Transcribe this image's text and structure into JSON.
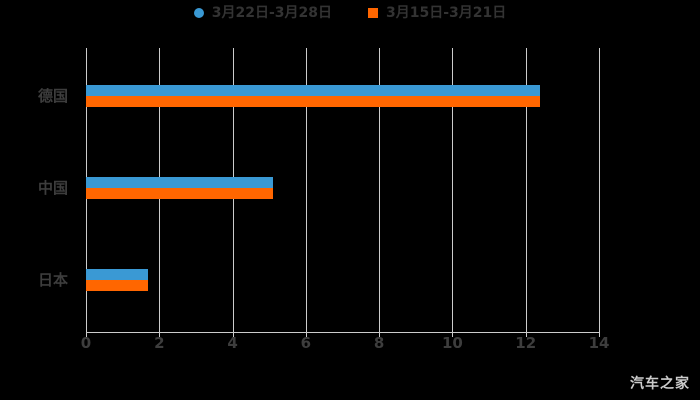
{
  "chart_data": {
    "type": "bar",
    "orientation": "horizontal",
    "title": "",
    "xlabel": "",
    "ylabel": "",
    "categories": [
      "德国",
      "中国",
      "日本"
    ],
    "series": [
      {
        "name": "3月22日-3月28日",
        "color": "#3a99d4",
        "marker": "circle",
        "values": [
          12.4,
          5.1,
          1.7
        ]
      },
      {
        "name": "3月15日-3月21日",
        "color": "#ff6600",
        "marker": "square",
        "values": [
          12.4,
          5.1,
          1.7
        ]
      }
    ],
    "xlim": [
      0,
      14
    ],
    "x_ticks": [
      0,
      2,
      4,
      6,
      8,
      10,
      12,
      14
    ],
    "grid": true,
    "legend_position": "top"
  },
  "watermark": "汽车之家",
  "colors": {
    "background": "#000000",
    "grid": "#cccccc",
    "axis": "#cccccc",
    "tick_text": "#3d3d3d",
    "category_text": "#3d3d3d",
    "legend_text": "#333333",
    "watermark": "#cccccc"
  }
}
